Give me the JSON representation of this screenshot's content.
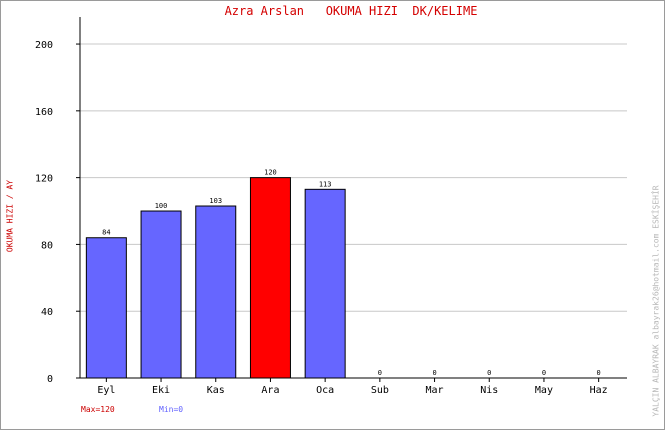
{
  "chart_data": {
    "type": "bar",
    "title": "Azra Arslan   OKUMA HIZI  DK/KELIME",
    "ylabel": "OKUMA HIZI / AY",
    "xlabel": "",
    "categories": [
      "Eyl",
      "Eki",
      "Kas",
      "Ara",
      "Oca",
      "Sub",
      "Mar",
      "Nis",
      "May",
      "Haz"
    ],
    "values": [
      84,
      100,
      103,
      120,
      113,
      0,
      0,
      0,
      0,
      0
    ],
    "value_labels": [
      "84",
      "100",
      "103",
      "120",
      "113",
      "0",
      "0",
      "0",
      "0",
      "0"
    ],
    "ylim": [
      0,
      215
    ],
    "yticks": [
      0,
      40,
      80,
      120,
      160,
      200
    ],
    "grid": true,
    "bar_color": "#6666ff",
    "max_bar_color": "#ff0000"
  },
  "legend": {
    "max_label": "Max=120",
    "min_label": "Min=0"
  },
  "credit": "YALÇIN ALBAYRAK  albayrak26@hotmail.com  ESKİŞEHİR",
  "colors": {
    "title": "#d40000",
    "grid": "#c8c8c8",
    "credit": "#b8b8b8"
  }
}
